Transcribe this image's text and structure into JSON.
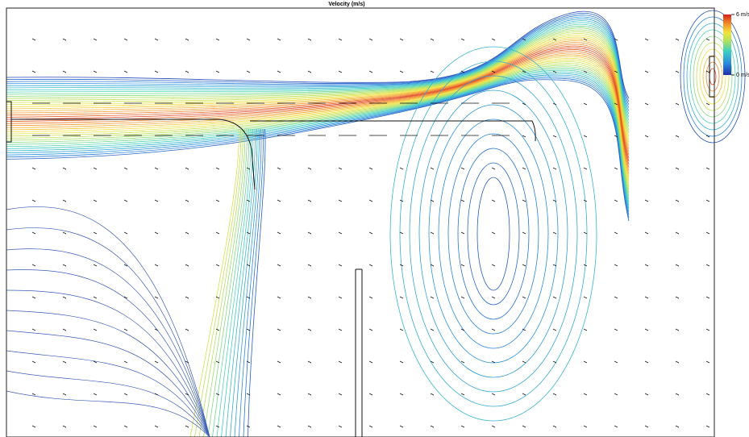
{
  "chart_data": {
    "type": "contour",
    "title": "Velocity (m/s)",
    "colorbar": {
      "lim": [
        0,
        6
      ],
      "ticks": [
        {
          "value": 6,
          "label": "6 m/s"
        },
        {
          "value": 0,
          "label": "0 m/s"
        }
      ]
    }
  }
}
